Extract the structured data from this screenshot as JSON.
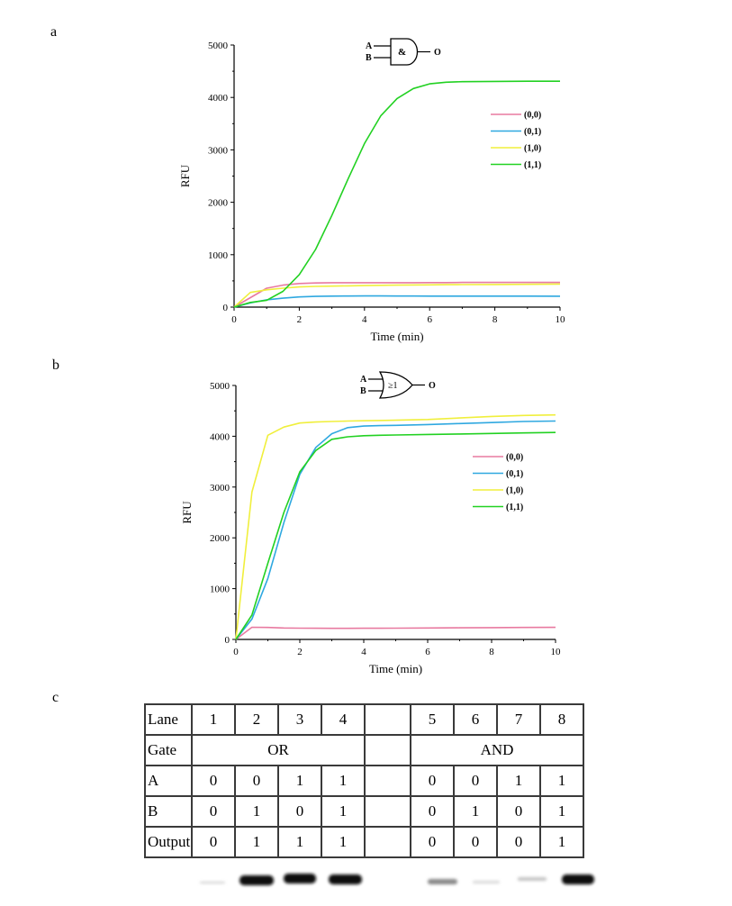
{
  "panels": {
    "a": "a",
    "b": "b",
    "c": "c"
  },
  "chart_data": [
    {
      "type": "line",
      "panel": "a",
      "gate": {
        "inputs": [
          "A",
          "B"
        ],
        "symbol": "&",
        "output": "O"
      },
      "xlabel": "Time (min)",
      "ylabel": "RFU",
      "xlim": [
        0,
        10
      ],
      "ylim": [
        0,
        5000
      ],
      "xticks": [
        0,
        2,
        4,
        6,
        8,
        10
      ],
      "yticks": [
        0,
        1000,
        2000,
        3000,
        4000,
        5000
      ],
      "legend": "right",
      "grid": false,
      "x": [
        0,
        0.5,
        1,
        1.5,
        2,
        2.5,
        3,
        3.5,
        4,
        4.5,
        5,
        5.5,
        6,
        6.5,
        7,
        8,
        9,
        10
      ],
      "series": [
        {
          "name": "(0,0)",
          "color": "#e87aa0",
          "values": [
            0,
            180,
            360,
            420,
            450,
            460,
            465,
            465,
            465,
            465,
            465,
            465,
            468,
            468,
            470,
            470,
            470,
            470
          ]
        },
        {
          "name": "(0,1)",
          "color": "#2fa8e0",
          "values": [
            0,
            80,
            140,
            170,
            195,
            205,
            210,
            212,
            213,
            213,
            212,
            212,
            210,
            210,
            210,
            210,
            210,
            208
          ]
        },
        {
          "name": "(1,0)",
          "color": "#f0ef3c",
          "values": [
            0,
            280,
            330,
            360,
            385,
            395,
            400,
            405,
            410,
            415,
            420,
            422,
            425,
            428,
            430,
            432,
            435,
            440
          ]
        },
        {
          "name": "(1,1)",
          "color": "#22d122",
          "values": [
            0,
            90,
            130,
            300,
            620,
            1100,
            1750,
            2450,
            3120,
            3650,
            3980,
            4170,
            4260,
            4290,
            4300,
            4305,
            4310,
            4310
          ]
        }
      ]
    },
    {
      "type": "line",
      "panel": "b",
      "gate": {
        "inputs": [
          "A",
          "B"
        ],
        "symbol": "≥1",
        "output": "O"
      },
      "xlabel": "Time (min)",
      "ylabel": "RFU",
      "xlim": [
        0,
        10
      ],
      "ylim": [
        0,
        5000
      ],
      "xticks": [
        0,
        2,
        4,
        6,
        8,
        10
      ],
      "yticks": [
        0,
        1000,
        2000,
        3000,
        4000,
        5000
      ],
      "legend": "right",
      "grid": false,
      "x": [
        0,
        0.5,
        1,
        1.5,
        2,
        2.5,
        3,
        3.5,
        4,
        4.5,
        5,
        6,
        7,
        8,
        9,
        10
      ],
      "series": [
        {
          "name": "(0,0)",
          "color": "#e87aa0",
          "values": [
            0,
            240,
            235,
            225,
            222,
            220,
            218,
            218,
            220,
            220,
            222,
            225,
            228,
            232,
            235,
            238
          ]
        },
        {
          "name": "(0,1)",
          "color": "#2fa8e0",
          "values": [
            0,
            400,
            1200,
            2300,
            3250,
            3780,
            4050,
            4170,
            4200,
            4210,
            4215,
            4230,
            4250,
            4270,
            4290,
            4300
          ]
        },
        {
          "name": "(1,0)",
          "color": "#f0ef3c",
          "values": [
            0,
            2900,
            4020,
            4180,
            4260,
            4280,
            4290,
            4300,
            4305,
            4310,
            4315,
            4330,
            4360,
            4390,
            4410,
            4420
          ]
        },
        {
          "name": "(1,1)",
          "color": "#22d122",
          "values": [
            0,
            480,
            1500,
            2500,
            3300,
            3720,
            3940,
            3990,
            4010,
            4020,
            4025,
            4035,
            4045,
            4055,
            4065,
            4075
          ]
        }
      ]
    },
    {
      "type": "table",
      "panel": "c",
      "rows": {
        "lane": {
          "label": "Lane",
          "left": [
            "1",
            "2",
            "3",
            "4"
          ],
          "right": [
            "5",
            "6",
            "7",
            "8"
          ]
        },
        "gate": {
          "label": "Gate",
          "left": "OR",
          "right": "AND"
        },
        "a": {
          "label": "A",
          "left": [
            "0",
            "0",
            "1",
            "1"
          ],
          "right": [
            "0",
            "0",
            "1",
            "1"
          ]
        },
        "b": {
          "label": "B",
          "left": [
            "0",
            "1",
            "0",
            "1"
          ],
          "right": [
            "0",
            "1",
            "0",
            "1"
          ]
        },
        "output": {
          "label": "Output",
          "left": [
            "0",
            "1",
            "1",
            "1"
          ],
          "right": [
            "0",
            "0",
            "0",
            "1"
          ]
        }
      }
    }
  ]
}
